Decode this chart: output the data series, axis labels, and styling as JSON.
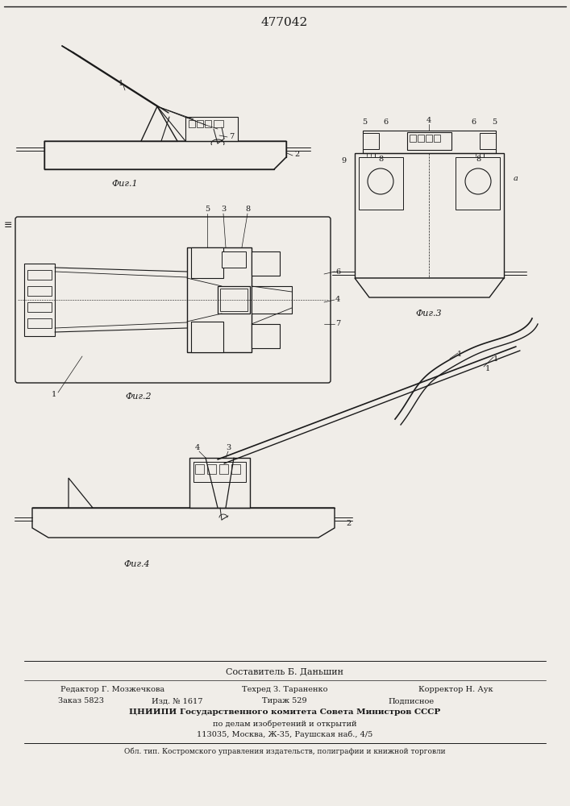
{
  "title": "477042",
  "bg_color": "#f0ede8",
  "line_color": "#1a1a1a",
  "fig1_label": "Фиг.1",
  "fig2_label": "Фиг.2",
  "fig3_label": "Фиг.3",
  "fig4_label": "Фиг.4",
  "footer_lines": [
    "Составитель Б. Даньшин",
    "Редактор Г. Мозжечкова",
    "Техред З. Тараненко",
    "Корректор Н. Аук",
    "Заказ 5823",
    "Изд. № 1617",
    "Тираж 529",
    "Подписное",
    "ЦНИИПИ Государственного комитета Совета Министров СССР",
    "по делам изобретений и открытий",
    "113035, Москва, Ж-35, Раушская наб., 4/5",
    "Обл. тип. Костромского управления издательств, полиграфии и книжной торговли"
  ]
}
